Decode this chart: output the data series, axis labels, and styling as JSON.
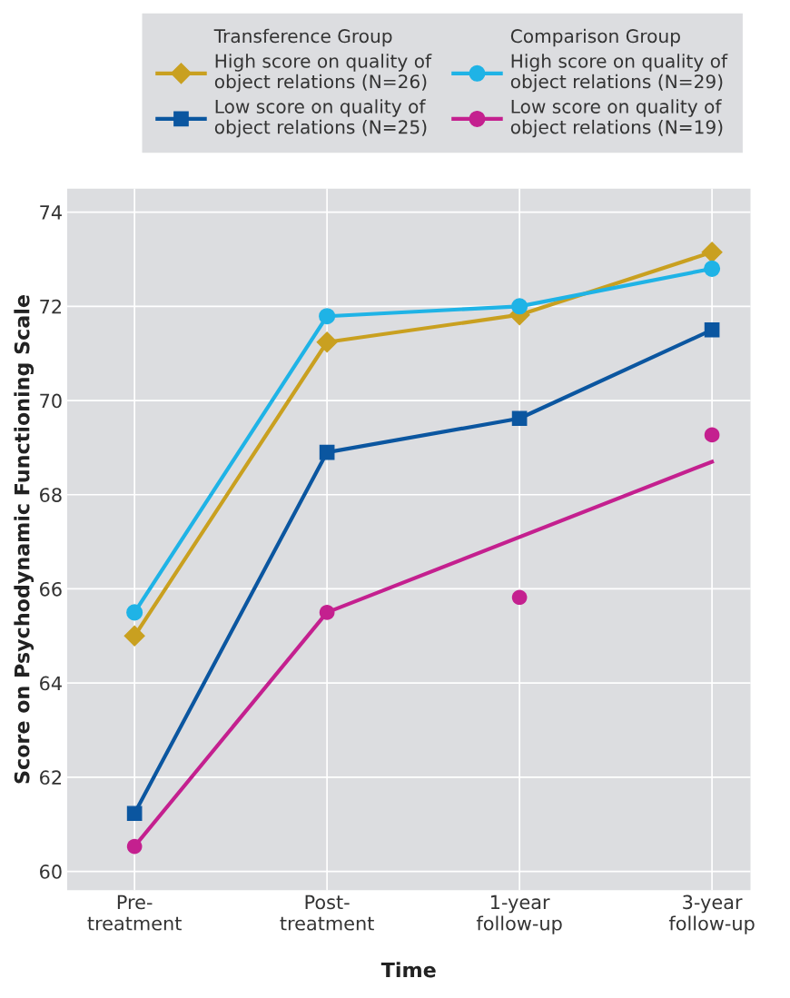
{
  "chart_data": {
    "type": "line",
    "xlabel": "Time",
    "ylabel": "Score on Psychodynamic Functioning Scale",
    "categories": [
      "Pre-\ntreatment",
      "Post-\ntreatment",
      "1-year\nfollow-up",
      "3-year\nfollow-up"
    ],
    "ylim": [
      59.6,
      74.5
    ],
    "yticks": [
      60,
      62,
      64,
      66,
      68,
      70,
      72,
      74
    ],
    "grid": true,
    "legend": "top",
    "annotations": [
      "Transference Group",
      "Comparison Group"
    ],
    "series": [
      {
        "name": "High score on quality of\nobject relations (N=26)",
        "color": "#c9a020",
        "marker": "diamond",
        "values": [
          65.0,
          71.24,
          71.82,
          73.15
        ]
      },
      {
        "name": "Low score on quality of\nobject relations (N=25)",
        "color": "#0b56a0",
        "marker": "square",
        "values": [
          61.23,
          68.9,
          69.62,
          71.5
        ]
      },
      {
        "name": "High score on quality of\nobject relations (N=29)",
        "color": "#1fb3e6",
        "marker": "circle",
        "values": [
          65.5,
          71.79,
          72.0,
          72.8
        ]
      },
      {
        "name": "Low score on quality of\nobject relations (N=19)",
        "type": "scatter",
        "color": "#c4208f",
        "marker": "circle",
        "values": [
          60.53,
          65.5,
          65.82,
          69.27
        ]
      },
      {
        "type": "line",
        "color": "#c4208f",
        "marker": "none",
        "values": [
          60.53,
          65.5,
          null,
          68.7
        ]
      }
    ]
  }
}
